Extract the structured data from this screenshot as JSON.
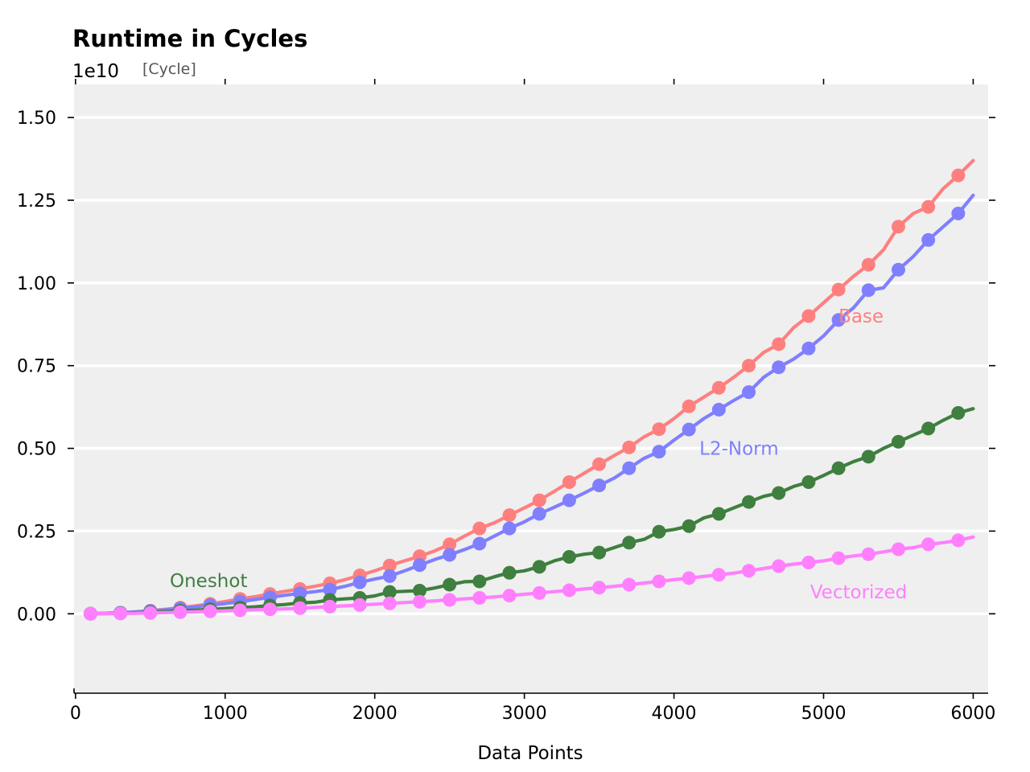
{
  "chart_data": {
    "type": "line",
    "title": "Runtime in Cycles",
    "xlabel": "Data Points",
    "ylabel": "",
    "y_unit": "[Cycle]",
    "y_multiplier": "1e10",
    "xlim": [
      -10,
      6100
    ],
    "ylim": [
      -0.24,
      1.6
    ],
    "x_ticks": [
      0,
      1000,
      2000,
      3000,
      4000,
      5000,
      6000
    ],
    "x_tick_labels": [
      "0",
      "1000",
      "2000",
      "3000",
      "4000",
      "5000",
      "6000"
    ],
    "y_ticks": [
      0.0,
      0.25,
      0.5,
      0.75,
      1.0,
      1.25,
      1.5
    ],
    "y_tick_labels": [
      "0.00",
      "0.25",
      "0.50",
      "0.75",
      "1.00",
      "1.25",
      "1.50"
    ],
    "grid": "horizontal",
    "background": "#efefef",
    "legend": "inline labels",
    "series": [
      {
        "name": "Base",
        "color": "#ff7f7f",
        "label_at": [
          5100,
          0.9
        ],
        "x": [
          100,
          200,
          300,
          400,
          500,
          600,
          700,
          800,
          900,
          1000,
          1100,
          1200,
          1300,
          1400,
          1500,
          1600,
          1700,
          1800,
          1900,
          2000,
          2100,
          2200,
          2300,
          2400,
          2500,
          2600,
          2700,
          2800,
          2900,
          3000,
          3100,
          3200,
          3300,
          3400,
          3500,
          3600,
          3700,
          3800,
          3900,
          4000,
          4100,
          4200,
          4300,
          4400,
          4500,
          4600,
          4700,
          4800,
          4900,
          5000,
          5100,
          5200,
          5300,
          5400,
          5500,
          5600,
          5700,
          5800,
          5900,
          6000
        ],
        "y": [
          0.0004,
          0.0015,
          0.0034,
          0.006,
          0.0095,
          0.0135,
          0.0185,
          0.024,
          0.03,
          0.037,
          0.045,
          0.052,
          0.06,
          0.068,
          0.075,
          0.083,
          0.092,
          0.103,
          0.116,
          0.13,
          0.146,
          0.16,
          0.174,
          0.19,
          0.21,
          0.235,
          0.258,
          0.275,
          0.298,
          0.32,
          0.343,
          0.37,
          0.398,
          0.425,
          0.452,
          0.478,
          0.503,
          0.535,
          0.558,
          0.59,
          0.627,
          0.655,
          0.683,
          0.715,
          0.75,
          0.79,
          0.815,
          0.865,
          0.9,
          0.94,
          0.98,
          1.02,
          1.055,
          1.1,
          1.17,
          1.21,
          1.23,
          1.285,
          1.325,
          1.37
        ],
        "marker_every": 2
      },
      {
        "name": "L2-Norm",
        "color": "#7f7fff",
        "label_at": [
          4170,
          0.5
        ],
        "x": [
          100,
          200,
          300,
          400,
          500,
          600,
          700,
          800,
          900,
          1000,
          1100,
          1200,
          1300,
          1400,
          1500,
          1600,
          1700,
          1800,
          1900,
          2000,
          2100,
          2200,
          2300,
          2400,
          2500,
          2600,
          2700,
          2800,
          2900,
          3000,
          3100,
          3200,
          3300,
          3400,
          3500,
          3600,
          3700,
          3800,
          3900,
          4000,
          4100,
          4200,
          4300,
          4400,
          4500,
          4600,
          4700,
          4800,
          4900,
          5000,
          5100,
          5200,
          5300,
          5400,
          5500,
          5600,
          5700,
          5800,
          5900,
          6000
        ],
        "y": [
          0.0003,
          0.0013,
          0.003,
          0.0055,
          0.0085,
          0.012,
          0.016,
          0.021,
          0.026,
          0.031,
          0.037,
          0.043,
          0.05,
          0.056,
          0.062,
          0.067,
          0.073,
          0.083,
          0.095,
          0.105,
          0.114,
          0.13,
          0.147,
          0.164,
          0.178,
          0.194,
          0.212,
          0.235,
          0.258,
          0.278,
          0.302,
          0.322,
          0.343,
          0.365,
          0.388,
          0.41,
          0.44,
          0.47,
          0.49,
          0.525,
          0.557,
          0.59,
          0.617,
          0.645,
          0.67,
          0.715,
          0.745,
          0.77,
          0.802,
          0.84,
          0.888,
          0.925,
          0.978,
          0.985,
          1.04,
          1.08,
          1.13,
          1.17,
          1.21,
          1.265
        ],
        "marker_every": 2
      },
      {
        "name": "Oneshot",
        "color": "#3f7f3f",
        "label_at": [
          630,
          0.1
        ],
        "x": [
          100,
          200,
          300,
          400,
          500,
          600,
          700,
          800,
          900,
          1000,
          1100,
          1200,
          1300,
          1400,
          1500,
          1600,
          1700,
          1800,
          1900,
          2000,
          2100,
          2200,
          2300,
          2400,
          2500,
          2600,
          2700,
          2800,
          2900,
          3000,
          3100,
          3200,
          3300,
          3400,
          3500,
          3600,
          3700,
          3800,
          3900,
          4000,
          4100,
          4200,
          4300,
          4400,
          4500,
          4600,
          4700,
          4800,
          4900,
          5000,
          5100,
          5200,
          5300,
          5400,
          5500,
          5600,
          5700,
          5800,
          5900,
          6000
        ],
        "y": [
          0.0002,
          0.0007,
          0.0016,
          0.003,
          0.0047,
          0.0066,
          0.0088,
          0.011,
          0.0135,
          0.016,
          0.0185,
          0.021,
          0.025,
          0.028,
          0.033,
          0.035,
          0.042,
          0.045,
          0.048,
          0.054,
          0.066,
          0.068,
          0.07,
          0.078,
          0.088,
          0.097,
          0.098,
          0.112,
          0.124,
          0.13,
          0.142,
          0.16,
          0.172,
          0.18,
          0.185,
          0.2,
          0.215,
          0.225,
          0.248,
          0.255,
          0.265,
          0.29,
          0.302,
          0.32,
          0.338,
          0.355,
          0.365,
          0.385,
          0.398,
          0.418,
          0.44,
          0.46,
          0.475,
          0.5,
          0.52,
          0.54,
          0.56,
          0.585,
          0.607,
          0.62
        ],
        "marker_every": 2
      },
      {
        "name": "Vectorized",
        "color": "#ff7fff",
        "label_at": [
          4910,
          0.066
        ],
        "x": [
          100,
          200,
          300,
          400,
          500,
          600,
          700,
          800,
          900,
          1000,
          1100,
          1200,
          1300,
          1400,
          1500,
          1600,
          1700,
          1800,
          1900,
          2000,
          2100,
          2200,
          2300,
          2400,
          2500,
          2600,
          2700,
          2800,
          2900,
          3000,
          3100,
          3200,
          3300,
          3400,
          3500,
          3600,
          3700,
          3800,
          3900,
          4000,
          4100,
          4200,
          4300,
          4400,
          4500,
          4600,
          4700,
          4800,
          4900,
          5000,
          5100,
          5200,
          5300,
          5400,
          5500,
          5600,
          5700,
          5800,
          5900,
          6000
        ],
        "y": [
          0.0001,
          0.0004,
          0.0009,
          0.0016,
          0.0025,
          0.0036,
          0.0048,
          0.006,
          0.0075,
          0.009,
          0.0105,
          0.012,
          0.0135,
          0.015,
          0.017,
          0.019,
          0.0215,
          0.024,
          0.0265,
          0.029,
          0.0315,
          0.034,
          0.0365,
          0.039,
          0.042,
          0.045,
          0.048,
          0.051,
          0.055,
          0.059,
          0.063,
          0.067,
          0.071,
          0.075,
          0.079,
          0.083,
          0.088,
          0.093,
          0.098,
          0.103,
          0.108,
          0.113,
          0.118,
          0.123,
          0.13,
          0.137,
          0.144,
          0.15,
          0.155,
          0.16,
          0.168,
          0.175,
          0.18,
          0.187,
          0.195,
          0.2,
          0.21,
          0.215,
          0.222,
          0.232
        ],
        "marker_every": 2
      }
    ]
  }
}
